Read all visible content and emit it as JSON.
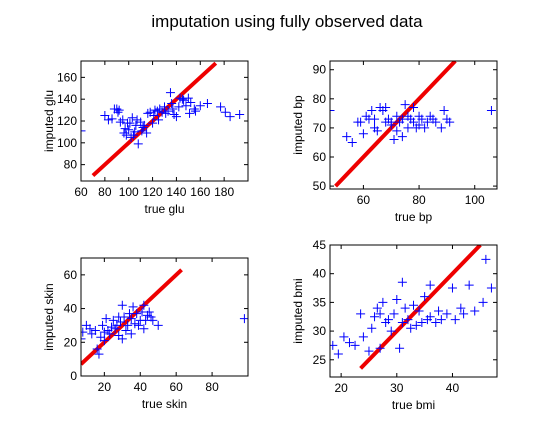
{
  "title": "imputation using fully observed data",
  "colors": {
    "marker": "#0000ff",
    "line": "#ee0000",
    "axis": "#000000"
  },
  "chart_data": [
    {
      "type": "scatter",
      "xlabel": "true glu",
      "ylabel": "imputed glu",
      "xlim": [
        60,
        200
      ],
      "ylim": [
        65,
        175
      ],
      "xticks": [
        60,
        80,
        100,
        120,
        140,
        160,
        180
      ],
      "yticks": [
        80,
        100,
        120,
        140,
        160
      ],
      "reference_line": {
        "x": [
          70,
          173
        ],
        "y": [
          70,
          173
        ]
      },
      "points": [
        [
          60,
          111
        ],
        [
          80,
          125
        ],
        [
          83,
          121
        ],
        [
          86,
          122
        ],
        [
          88,
          131
        ],
        [
          90,
          131
        ],
        [
          91,
          128
        ],
        [
          92,
          130
        ],
        [
          93,
          119
        ],
        [
          95,
          121
        ],
        [
          96,
          109
        ],
        [
          97,
          113
        ],
        [
          98,
          107
        ],
        [
          99,
          118
        ],
        [
          100,
          112
        ],
        [
          101,
          118
        ],
        [
          102,
          105
        ],
        [
          103,
          123
        ],
        [
          104,
          107
        ],
        [
          105,
          110
        ],
        [
          106,
          116
        ],
        [
          107,
          121
        ],
        [
          108,
          99
        ],
        [
          110,
          119
        ],
        [
          111,
          111
        ],
        [
          112,
          114
        ],
        [
          113,
          116
        ],
        [
          115,
          109
        ],
        [
          116,
          127
        ],
        [
          118,
          128
        ],
        [
          120,
          118
        ],
        [
          121,
          125
        ],
        [
          122,
          130
        ],
        [
          124,
          129
        ],
        [
          125,
          121
        ],
        [
          126,
          131
        ],
        [
          128,
          128
        ],
        [
          130,
          133
        ],
        [
          131,
          127
        ],
        [
          133,
          129
        ],
        [
          135,
          146
        ],
        [
          136,
          136
        ],
        [
          137,
          131
        ],
        [
          138,
          126
        ],
        [
          140,
          124
        ],
        [
          142,
          133
        ],
        [
          143,
          141
        ],
        [
          145,
          140
        ],
        [
          146,
          139
        ],
        [
          148,
          134
        ],
        [
          150,
          141
        ],
        [
          151,
          127
        ],
        [
          152,
          137
        ],
        [
          155,
          131
        ],
        [
          156,
          129
        ],
        [
          160,
          134
        ],
        [
          166,
          136
        ],
        [
          177,
          133
        ],
        [
          181,
          128
        ],
        [
          185,
          124
        ],
        [
          193,
          126
        ]
      ]
    },
    {
      "type": "scatter",
      "xlabel": "true bp",
      "ylabel": "imputed bp",
      "xlim": [
        48,
        108
      ],
      "ylim": [
        49,
        93
      ],
      "xticks": [
        60,
        80,
        100
      ],
      "yticks": [
        50,
        60,
        70,
        80,
        90
      ],
      "reference_line": {
        "x": [
          50,
          93
        ],
        "y": [
          50,
          93
        ]
      },
      "points": [
        [
          48,
          76
        ],
        [
          54,
          67
        ],
        [
          56,
          65
        ],
        [
          58,
          72
        ],
        [
          59,
          72
        ],
        [
          60,
          68
        ],
        [
          61,
          74
        ],
        [
          62,
          73
        ],
        [
          63,
          76
        ],
        [
          64,
          73
        ],
        [
          64,
          70
        ],
        [
          65,
          69
        ],
        [
          66,
          77
        ],
        [
          67,
          76
        ],
        [
          68,
          72
        ],
        [
          68,
          77
        ],
        [
          69,
          73
        ],
        [
          70,
          71
        ],
        [
          70,
          72
        ],
        [
          71,
          66
        ],
        [
          72,
          69
        ],
        [
          72,
          74
        ],
        [
          73,
          72
        ],
        [
          74,
          73
        ],
        [
          74,
          67
        ],
        [
          75,
          78
        ],
        [
          76,
          70
        ],
        [
          76,
          74
        ],
        [
          77,
          73
        ],
        [
          78,
          77
        ],
        [
          78,
          72
        ],
        [
          79,
          70
        ],
        [
          80,
          71
        ],
        [
          80,
          74
        ],
        [
          81,
          73
        ],
        [
          82,
          70
        ],
        [
          83,
          72
        ],
        [
          84,
          74
        ],
        [
          85,
          73
        ],
        [
          86,
          72
        ],
        [
          88,
          70
        ],
        [
          89,
          76
        ],
        [
          90,
          73
        ],
        [
          91,
          72
        ],
        [
          106,
          76
        ]
      ]
    },
    {
      "type": "scatter",
      "xlabel": "true skin",
      "ylabel": "imputed skin",
      "xlim": [
        7,
        100
      ],
      "ylim": [
        0,
        70
      ],
      "xticks": [
        20,
        40,
        60,
        80
      ],
      "yticks": [
        0,
        20,
        40,
        60
      ],
      "reference_line": {
        "x": [
          7,
          63
        ],
        "y": [
          7,
          63
        ]
      },
      "points": [
        [
          7,
          22
        ],
        [
          8,
          26
        ],
        [
          10,
          30
        ],
        [
          12,
          28
        ],
        [
          13,
          25
        ],
        [
          15,
          27
        ],
        [
          16,
          16
        ],
        [
          17,
          13
        ],
        [
          18,
          23
        ],
        [
          19,
          30
        ],
        [
          20,
          21
        ],
        [
          20,
          26
        ],
        [
          21,
          34
        ],
        [
          22,
          27
        ],
        [
          23,
          25
        ],
        [
          24,
          29
        ],
        [
          25,
          33
        ],
        [
          26,
          28
        ],
        [
          27,
          30
        ],
        [
          28,
          24
        ],
        [
          28,
          35
        ],
        [
          29,
          32
        ],
        [
          30,
          22
        ],
        [
          30,
          42
        ],
        [
          31,
          35
        ],
        [
          32,
          27
        ],
        [
          33,
          30
        ],
        [
          34,
          37
        ],
        [
          35,
          34
        ],
        [
          35,
          25
        ],
        [
          36,
          41
        ],
        [
          37,
          31
        ],
        [
          38,
          37
        ],
        [
          39,
          30
        ],
        [
          40,
          33
        ],
        [
          41,
          38
        ],
        [
          42,
          28
        ],
        [
          42,
          42
        ],
        [
          43,
          33
        ],
        [
          44,
          36
        ],
        [
          45,
          38
        ],
        [
          46,
          35
        ],
        [
          47,
          33
        ],
        [
          50,
          30
        ],
        [
          98,
          34
        ]
      ]
    },
    {
      "type": "scatter",
      "xlabel": "true bmi",
      "ylabel": "imputed bmi",
      "xlim": [
        18,
        48
      ],
      "ylim": [
        22,
        45
      ],
      "xticks": [
        20,
        30,
        40
      ],
      "yticks": [
        25,
        30,
        35,
        40,
        45
      ],
      "reference_line": {
        "x": [
          23.5,
          45
        ],
        "y": [
          23.5,
          45
        ]
      },
      "points": [
        [
          18.5,
          27.5
        ],
        [
          19.5,
          26
        ],
        [
          20.5,
          29
        ],
        [
          21.5,
          28
        ],
        [
          22.5,
          27.5
        ],
        [
          23.5,
          33
        ],
        [
          24,
          29
        ],
        [
          25,
          26.5
        ],
        [
          25.5,
          30.5
        ],
        [
          26,
          32.5
        ],
        [
          26.5,
          34
        ],
        [
          27,
          33
        ],
        [
          27,
          27
        ],
        [
          27.5,
          35
        ],
        [
          28,
          31.5
        ],
        [
          28.5,
          32
        ],
        [
          29,
          30
        ],
        [
          29.5,
          33
        ],
        [
          30,
          35.5
        ],
        [
          30.5,
          27
        ],
        [
          31,
          31.5
        ],
        [
          31,
          38.5
        ],
        [
          31.5,
          34
        ],
        [
          32,
          32
        ],
        [
          32.5,
          30.5
        ],
        [
          33,
          34.5
        ],
        [
          33.5,
          31
        ],
        [
          34,
          33.5
        ],
        [
          34.5,
          31.5
        ],
        [
          35,
          36
        ],
        [
          35.5,
          32
        ],
        [
          36,
          38
        ],
        [
          36,
          32.5
        ],
        [
          37,
          31.5
        ],
        [
          37.5,
          33.5
        ],
        [
          38,
          32
        ],
        [
          39,
          33
        ],
        [
          40,
          37.5
        ],
        [
          40.5,
          32
        ],
        [
          41.5,
          34
        ],
        [
          42,
          33
        ],
        [
          43,
          38
        ],
        [
          44,
          33.5
        ],
        [
          45.5,
          35
        ],
        [
          46,
          42.5
        ],
        [
          47,
          37.5
        ]
      ]
    }
  ]
}
